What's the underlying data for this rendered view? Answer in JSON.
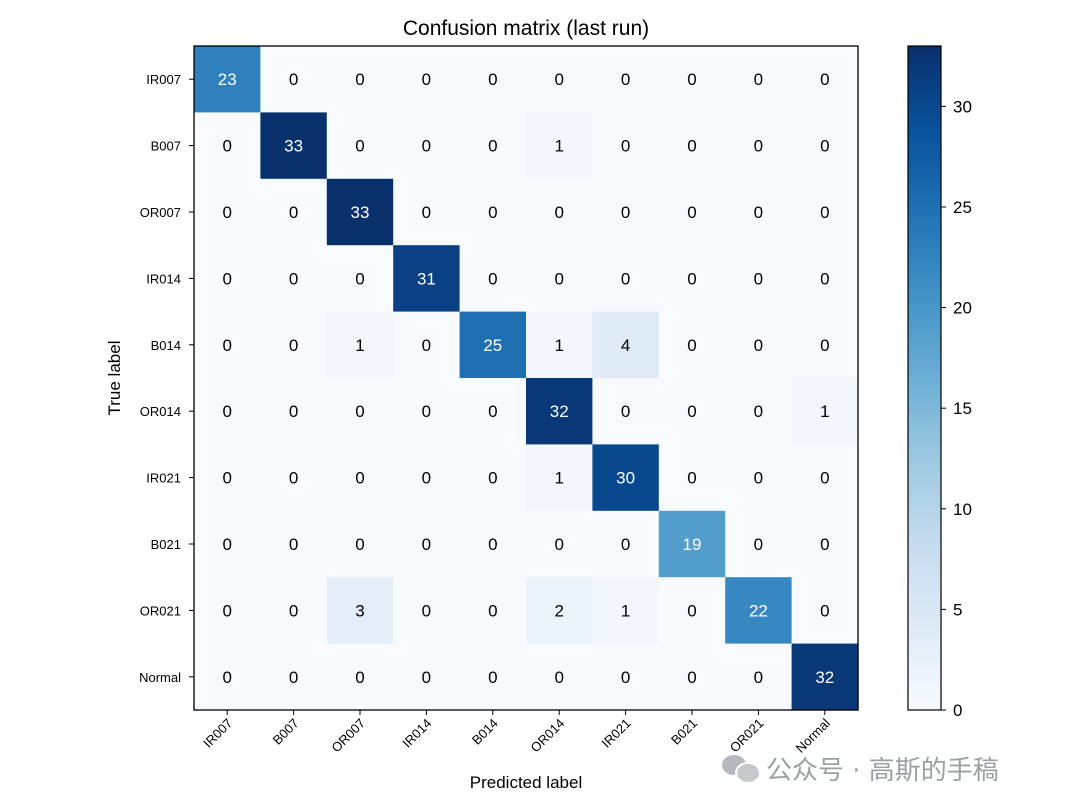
{
  "chart_data": {
    "type": "heatmap",
    "title": "Confusion matrix (last run)",
    "xlabel": "Predicted label",
    "ylabel": "True label",
    "x_categories": [
      "IR007",
      "B007",
      "OR007",
      "IR014",
      "B014",
      "OR014",
      "IR021",
      "B021",
      "OR021",
      "Normal"
    ],
    "y_categories": [
      "IR007",
      "B007",
      "OR007",
      "IR014",
      "B014",
      "OR014",
      "IR021",
      "B021",
      "OR021",
      "Normal"
    ],
    "values": [
      [
        23,
        0,
        0,
        0,
        0,
        0,
        0,
        0,
        0,
        0
      ],
      [
        0,
        33,
        0,
        0,
        0,
        1,
        0,
        0,
        0,
        0
      ],
      [
        0,
        0,
        33,
        0,
        0,
        0,
        0,
        0,
        0,
        0
      ],
      [
        0,
        0,
        0,
        31,
        0,
        0,
        0,
        0,
        0,
        0
      ],
      [
        0,
        0,
        1,
        0,
        25,
        1,
        4,
        0,
        0,
        0
      ],
      [
        0,
        0,
        0,
        0,
        0,
        32,
        0,
        0,
        0,
        1
      ],
      [
        0,
        0,
        0,
        0,
        0,
        1,
        30,
        0,
        0,
        0
      ],
      [
        0,
        0,
        0,
        0,
        0,
        0,
        0,
        19,
        0,
        0
      ],
      [
        0,
        0,
        3,
        0,
        0,
        2,
        1,
        0,
        22,
        0
      ],
      [
        0,
        0,
        0,
        0,
        0,
        0,
        0,
        0,
        0,
        32
      ]
    ],
    "colormap": "Blues",
    "color_range": [
      0,
      33
    ],
    "colorbar_ticks": [
      0,
      5,
      10,
      15,
      20,
      25,
      30
    ],
    "grid": false,
    "x_tick_rotation_deg": 45
  },
  "watermark": {
    "text": "公众号 · 高斯的手稿",
    "icon": "wechat-icon"
  }
}
